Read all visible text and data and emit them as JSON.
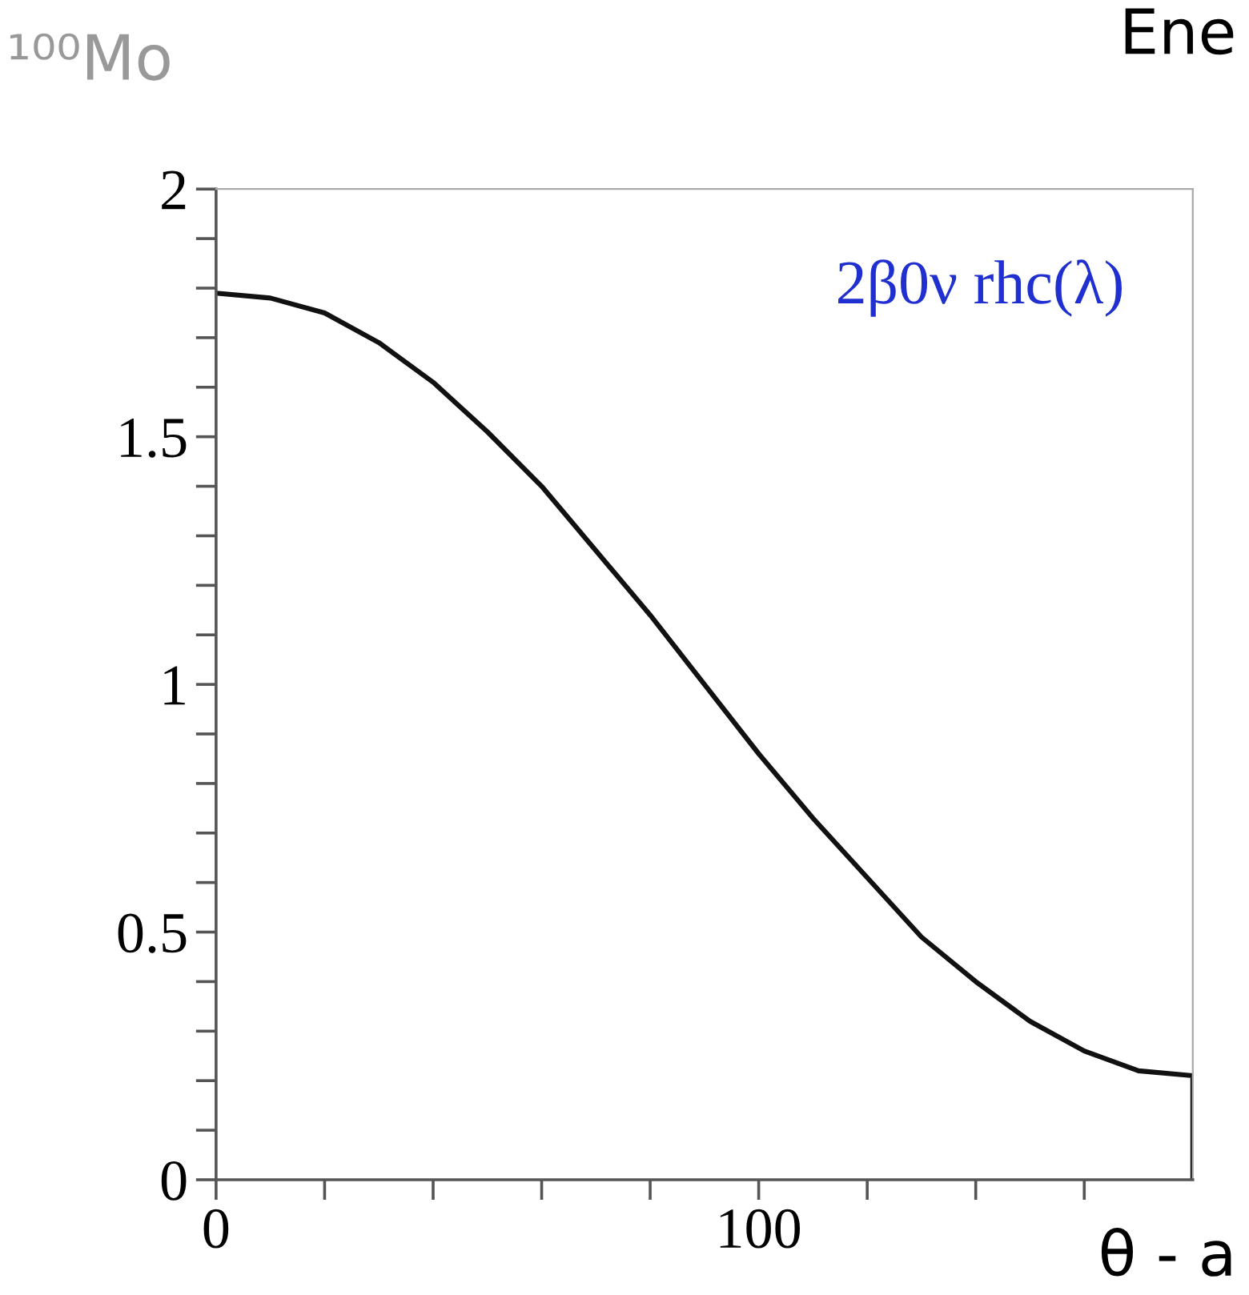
{
  "chart_data": {
    "type": "line",
    "ylabel": "¹⁰⁰Mo",
    "annotations": [
      "2β0ν rhc(λ)",
      "Ene",
      "θ - a"
    ],
    "series": [
      {
        "color": "#111111",
        "x": [
          0,
          10,
          20,
          30,
          40,
          50,
          60,
          70,
          80,
          90,
          100,
          110,
          120,
          130,
          140,
          150,
          160,
          170,
          180,
          180
        ],
        "values": [
          1.79,
          1.78,
          1.75,
          1.69,
          1.61,
          1.51,
          1.4,
          1.27,
          1.14,
          1.0,
          0.86,
          0.73,
          0.61,
          0.49,
          0.4,
          0.32,
          0.26,
          0.22,
          0.21,
          0
        ]
      }
    ],
    "xlim": [
      0,
      180
    ],
    "xticks": [
      0,
      {
        "value": 20,
        "label": null
      },
      {
        "value": 40,
        "label": null
      },
      {
        "value": 60,
        "label": null
      },
      {
        "value": 80,
        "label": null
      },
      100,
      {
        "value": 120,
        "label": null
      },
      {
        "value": 140,
        "label": null
      },
      {
        "value": 160,
        "label": null
      }
    ],
    "ylim": [
      0,
      2
    ],
    "yticks": [
      0,
      {
        "value": 0.1,
        "label": null
      },
      {
        "value": 0.2,
        "label": null
      },
      {
        "value": 0.3,
        "label": null
      },
      {
        "value": 0.4,
        "label": null
      },
      0.5,
      {
        "value": 0.6,
        "label": null
      },
      {
        "value": 0.7,
        "label": null
      },
      {
        "value": 0.8,
        "label": null
      },
      {
        "value": 0.9,
        "label": null
      },
      1,
      {
        "value": 1.1,
        "label": null
      },
      {
        "value": 1.2,
        "label": null
      },
      {
        "value": 1.3,
        "label": null
      },
      {
        "value": 1.4,
        "label": null
      },
      1.5,
      {
        "value": 1.6,
        "label": null
      },
      {
        "value": 1.7,
        "label": null
      },
      {
        "value": 1.8,
        "label": null
      },
      {
        "value": 1.9,
        "label": null
      },
      2
    ],
    "grid": false,
    "legend": false,
    "marker": "none",
    "line_style": "solid"
  }
}
